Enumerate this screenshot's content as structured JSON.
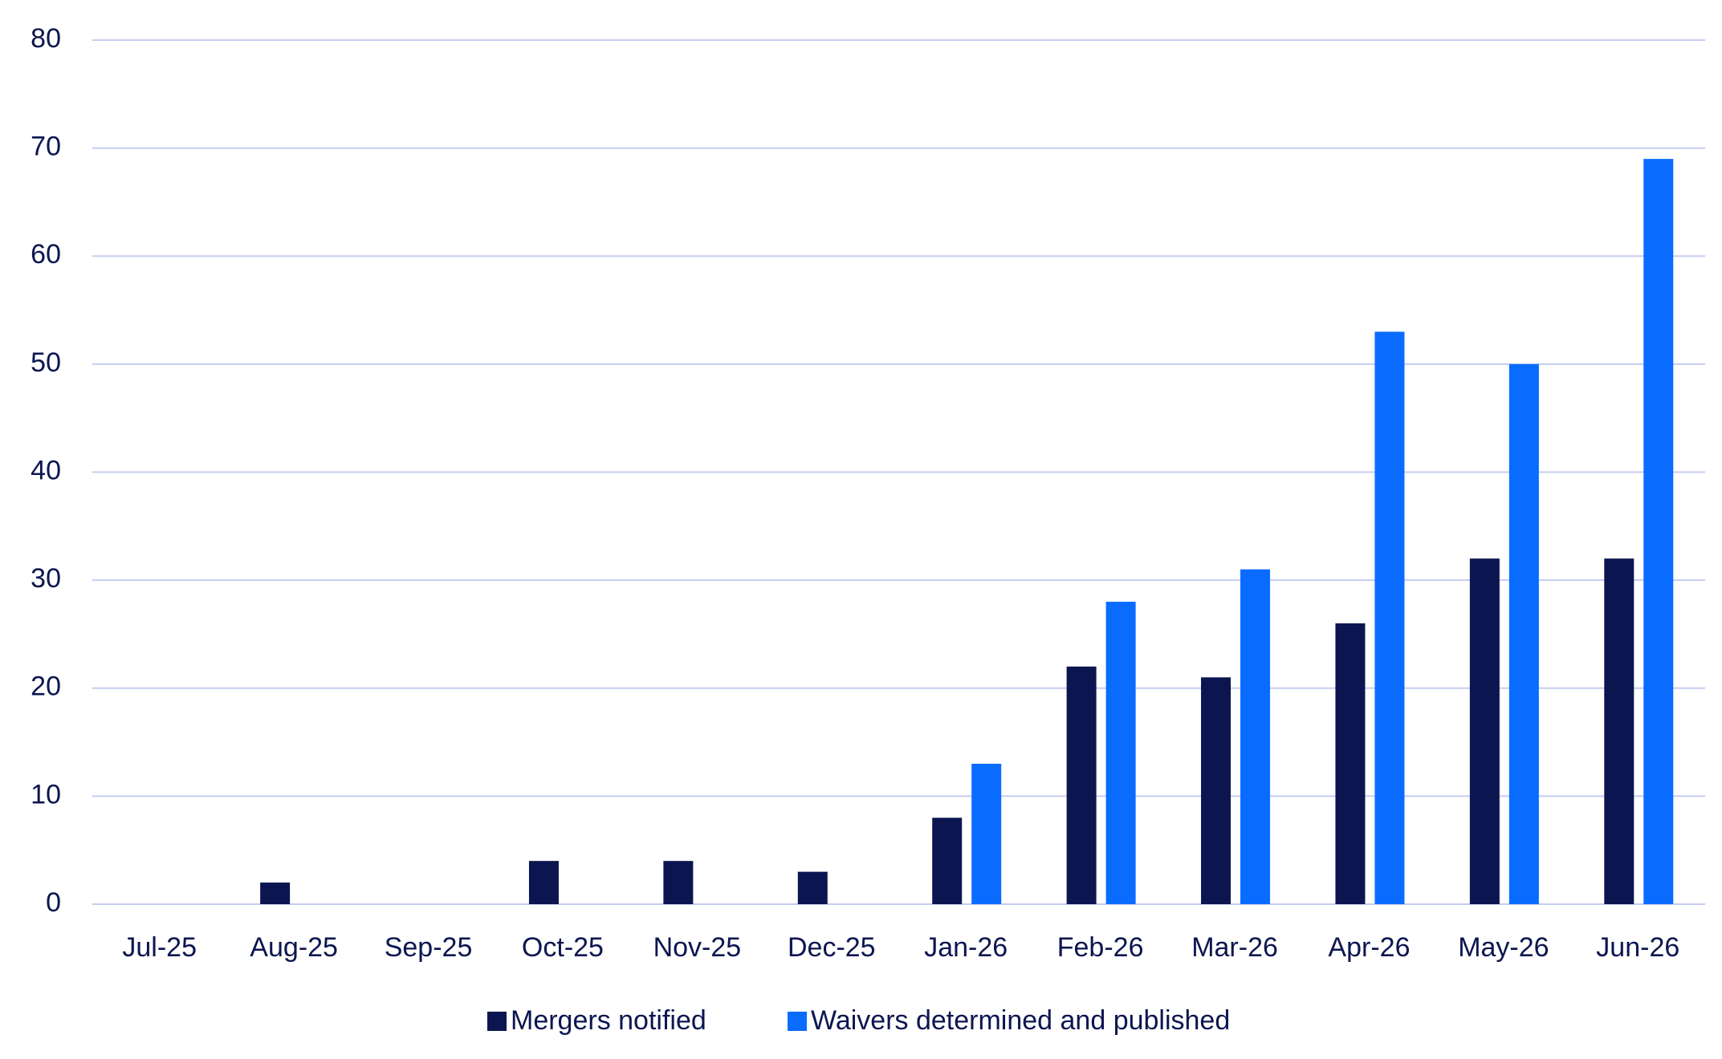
{
  "chart_data": {
    "type": "bar",
    "categories": [
      "Jul-25",
      "Aug-25",
      "Sep-25",
      "Oct-25",
      "Nov-25",
      "Dec-25",
      "Jan-26",
      "Feb-26",
      "Mar-26",
      "Apr-26",
      "May-26",
      "Jun-26"
    ],
    "series": [
      {
        "name": "Mergers notified",
        "color": "#0b1650",
        "values": [
          0,
          2,
          0,
          4,
          4,
          3,
          8,
          22,
          21,
          26,
          32,
          32
        ]
      },
      {
        "name": "Waivers determined and published",
        "color": "#0a6cff",
        "values": [
          0,
          0,
          0,
          0,
          0,
          0,
          13,
          28,
          31,
          53,
          50,
          69
        ]
      }
    ],
    "ylim": [
      0,
      80
    ],
    "yticks": [
      0,
      10,
      20,
      30,
      40,
      50,
      60,
      70,
      80
    ],
    "grid": true,
    "legend": "bottom"
  }
}
